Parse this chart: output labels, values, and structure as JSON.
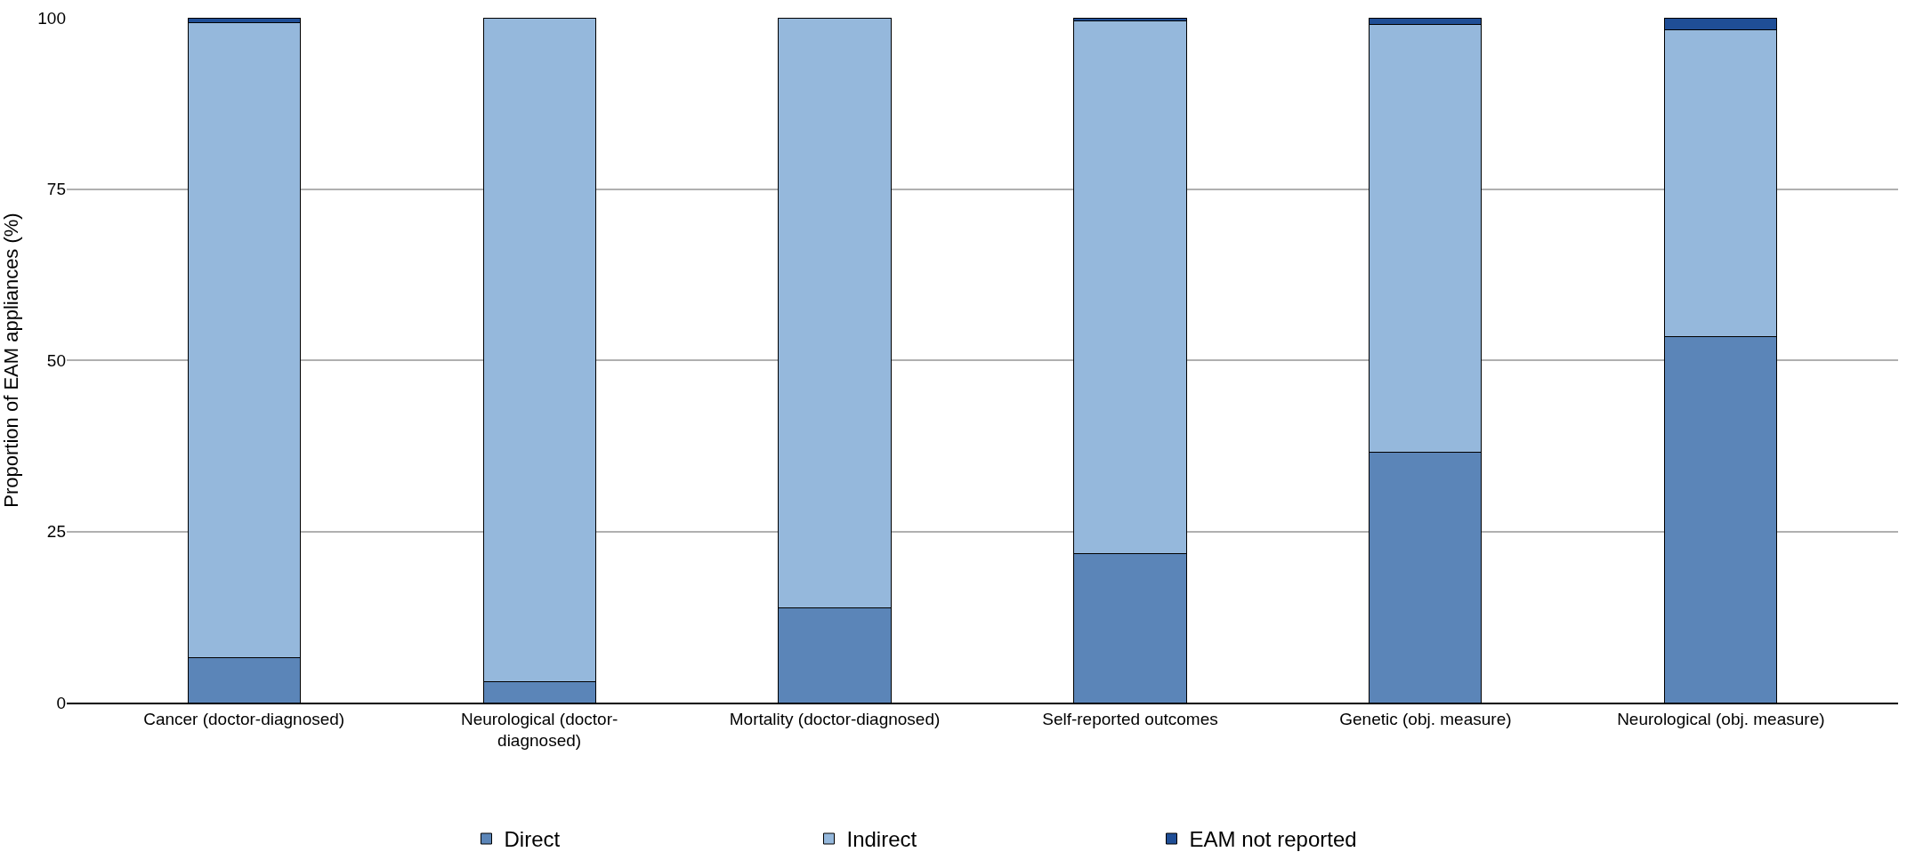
{
  "chart_data": {
    "type": "bar",
    "stacked": true,
    "ylabel": "Proportion of EAM appliances (%)",
    "categories": [
      "Cancer (doctor-diagnosed)",
      "Neurological (doctor-\ndiagnosed)",
      "Mortality (doctor-diagnosed)",
      "Self-reported outcomes",
      "Genetic (obj. measure)",
      "Neurological (obj. measure)"
    ],
    "series": [
      {
        "name": "Direct",
        "color": "#5b85b8",
        "values": [
          6.5,
          3.1,
          13.8,
          21.8,
          36.5,
          53.4
        ]
      },
      {
        "name": "Indirect",
        "color": "#95b8dc",
        "values": [
          92.8,
          96.9,
          86.2,
          77.7,
          62.5,
          44.9
        ]
      },
      {
        "name": "EAM not reported",
        "color": "#1f4e96",
        "values": [
          0.7,
          0,
          0,
          0.5,
          1.0,
          1.7
        ]
      }
    ],
    "ylim": [
      0,
      100
    ],
    "yticks": [
      0,
      25,
      50,
      75,
      100
    ],
    "grid": "y",
    "legend": "bottom"
  }
}
